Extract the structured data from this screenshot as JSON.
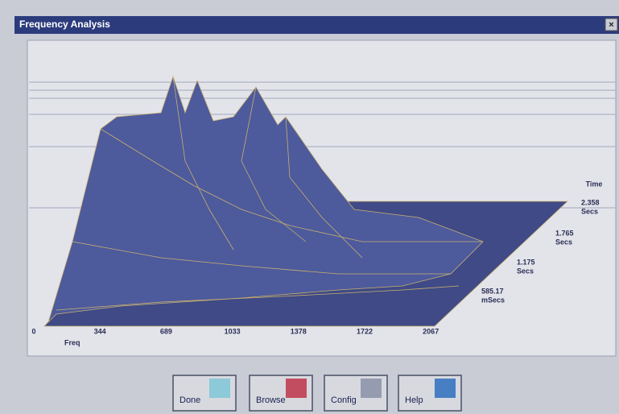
{
  "window": {
    "title": "Frequency Analysis"
  },
  "plot": {
    "freq_label": "Freq",
    "freq_ticks": [
      "0",
      "344",
      "689",
      "1033",
      "1378",
      "1722",
      "2067"
    ],
    "time_label": "Time",
    "time_ticks": [
      {
        "value": "2.358",
        "unit": "Secs"
      },
      {
        "value": "1.765",
        "unit": "Secs"
      },
      {
        "value": "1.175",
        "unit": "Secs"
      },
      {
        "value": "585.17",
        "unit": "mSecs"
      }
    ]
  },
  "buttons": [
    "Done",
    "Browse",
    "Config",
    "Help"
  ]
}
